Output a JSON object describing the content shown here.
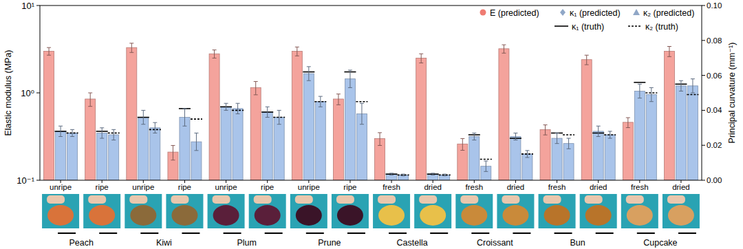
{
  "chart_data": {
    "type": "bar",
    "ylabel": "Elastic modulus (MPa)",
    "y2label": "Principal curvature (mm⁻¹)",
    "categories": [
      "unripe",
      "ripe",
      "unripe",
      "ripe",
      "unripe",
      "ripe",
      "unripe",
      "ripe",
      "fresh",
      "dried",
      "fresh",
      "dried",
      "fresh",
      "dried",
      "fresh",
      "dried"
    ],
    "groups": [
      "Peach",
      "Kiwi",
      "Plum",
      "Prune",
      "Castella",
      "Croissant",
      "Bun",
      "Cupcake"
    ],
    "log": "y",
    "ylim": [
      0.1,
      10
    ],
    "yticks": [
      {
        "value": 0.1,
        "label": "10⁻¹"
      },
      {
        "value": 1,
        "label": "10⁰"
      },
      {
        "value": 10,
        "label": "10¹"
      }
    ],
    "y2lim": [
      0,
      0.1
    ],
    "y2ticks": [
      {
        "value": 0,
        "label": "0.00"
      },
      {
        "value": 0.02,
        "label": "0.02"
      },
      {
        "value": 0.04,
        "label": "0.04"
      },
      {
        "value": 0.06,
        "label": "0.06"
      },
      {
        "value": 0.08,
        "label": "0.08"
      },
      {
        "value": 0.1,
        "label": "0.10"
      }
    ],
    "legend": "upper right",
    "series": [
      {
        "name": "E (predicted)",
        "type": "bar",
        "axis": "y",
        "color": "#f4a39c",
        "marker": "circle",
        "values": [
          3.0,
          0.85,
          3.3,
          0.21,
          2.8,
          1.15,
          3.0,
          0.85,
          0.3,
          2.5,
          0.26,
          3.2,
          0.38,
          2.4,
          0.46,
          3.0
        ],
        "errors": [
          0.3,
          0.15,
          0.4,
          0.04,
          0.3,
          0.2,
          0.35,
          0.12,
          0.05,
          0.3,
          0.04,
          0.35,
          0.05,
          0.3,
          0.06,
          0.4
        ]
      },
      {
        "name": "κ₁ (predicted)",
        "type": "bar",
        "axis": "y2",
        "color": "#a9c4ea",
        "marker": "diamond",
        "values": [
          0.028,
          0.027,
          0.036,
          0.036,
          0.042,
          0.039,
          0.061,
          0.058,
          0.0035,
          0.0035,
          0.025,
          0.025,
          0.024,
          0.028,
          0.051,
          0.054
        ],
        "errors": [
          0.003,
          0.003,
          0.004,
          0.005,
          0.002,
          0.003,
          0.004,
          0.005,
          0.0005,
          0.0005,
          0.002,
          0.002,
          0.003,
          0.003,
          0.004,
          0.003
        ]
      },
      {
        "name": "κ₂ (predicted)",
        "type": "bar",
        "axis": "y2",
        "color": "#a9c4ea",
        "marker": "triangle",
        "values": [
          0.027,
          0.026,
          0.03,
          0.022,
          0.041,
          0.036,
          0.045,
          0.038,
          0.003,
          0.003,
          0.008,
          0.015,
          0.021,
          0.026,
          0.049,
          0.054
        ],
        "errors": [
          0.002,
          0.003,
          0.003,
          0.005,
          0.003,
          0.004,
          0.003,
          0.006,
          0.0005,
          0.0005,
          0.003,
          0.002,
          0.003,
          0.002,
          0.004,
          0.004
        ]
      },
      {
        "name": "κ₁ (truth)",
        "type": "line",
        "axis": "y2",
        "color": "#000000",
        "line_style": "solid",
        "values": [
          0.028,
          0.028,
          0.036,
          0.041,
          0.042,
          0.039,
          0.062,
          0.062,
          0.0035,
          0.0035,
          0.026,
          0.024,
          0.027,
          0.027,
          0.056,
          0.055
        ]
      },
      {
        "name": "κ₂ (truth)",
        "type": "line",
        "axis": "y2",
        "color": "#000000",
        "line_style": "dashed",
        "values": [
          0.027,
          0.027,
          0.029,
          0.035,
          0.04,
          0.036,
          0.045,
          0.045,
          0.003,
          0.003,
          0.012,
          0.015,
          0.026,
          0.026,
          0.05,
          0.049
        ]
      }
    ]
  }
}
